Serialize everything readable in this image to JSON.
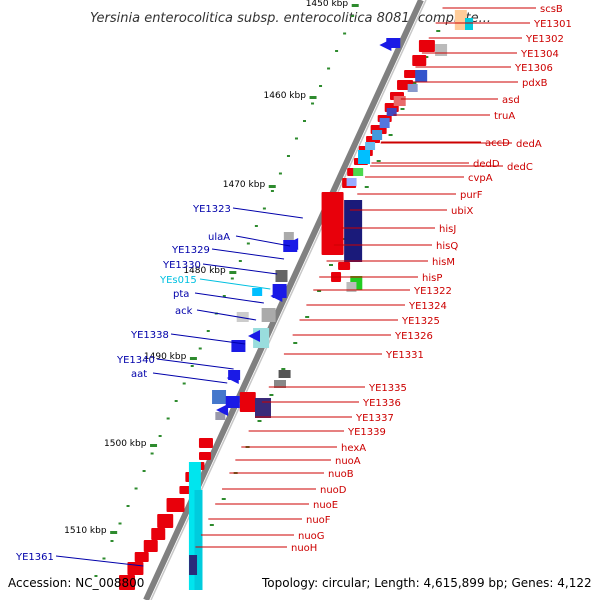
{
  "title": "Yersinia enterocolitica subsp. enterocolitica 8081, complete...",
  "accession": "Accession: NC_008800",
  "topology": "Topology: circular; Length: 4,615,899 bp; Genes: 4,122",
  "ticks": [
    "1450 kbp",
    "1460 kbp",
    "1470 kbp",
    "1480 kbp",
    "1490 kbp",
    "1500 kbp",
    "1510 kbp"
  ],
  "colors": {
    "forward": "#e8000b",
    "reverse": "#1a1ae6",
    "ncrna": "#00b7eb",
    "backbone": "#808080",
    "tick": "#2e8b2e",
    "right_label": "#cc0000",
    "left_label": "#0000aa",
    "ncrna_label": "#00c0e0"
  },
  "right_labels": [
    "scsB",
    "YE1301",
    "YE1302",
    "YE1304",
    "YE1306",
    "pdxB",
    "asd",
    "truA",
    "accD",
    "dedA",
    "dedD",
    "dedC",
    "cvpA",
    "purF",
    "ubiX",
    "hisJ",
    "hisQ",
    "hisM",
    "hisP",
    "YE1322",
    "YE1324",
    "YE1325",
    "YE1326",
    "YE1331",
    "YE1335",
    "YE1336",
    "YE1337",
    "YE1339",
    "hexA",
    "nuoA",
    "nuoB",
    "nuoD",
    "nuoE",
    "nuoF",
    "nuoG",
    "nuoH"
  ],
  "left_labels": [
    "YE1323",
    "ulaA",
    "YE1329",
    "YE1330",
    "YEs015",
    "pta",
    "ack",
    "YE1338",
    "YE1340",
    "aat",
    "YE1361"
  ]
}
